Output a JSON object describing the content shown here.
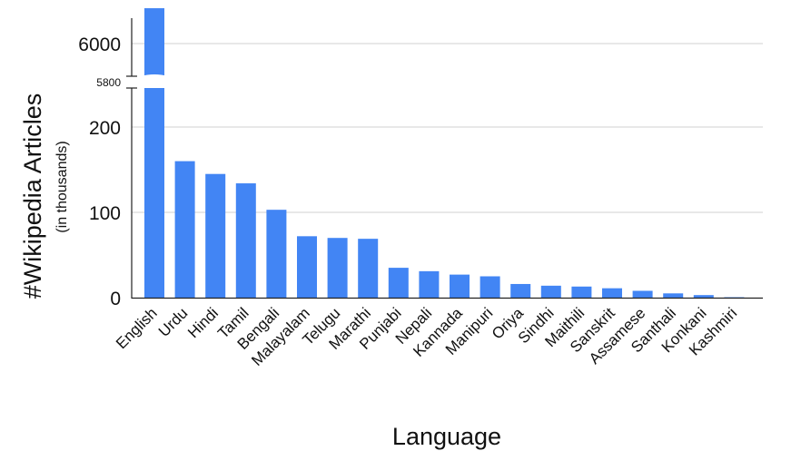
{
  "chart_data": {
    "type": "bar",
    "title": "",
    "xlabel": "Language",
    "ylabel": "#Wikipedia Articles",
    "ylabel_sub": "(in thousands)",
    "y_axis_break": {
      "lower_range": [
        0,
        250
      ],
      "upper_range": [
        5800,
        6050
      ],
      "break_label": "5800"
    },
    "yticks_lower": [
      0,
      100,
      200
    ],
    "yticks_upper": [
      6000
    ],
    "grid": true,
    "categories": [
      "English",
      "Urdu",
      "Hindi",
      "Tamil",
      "Bengali",
      "Malayalam",
      "Telugu",
      "Marathi",
      "Punjabi",
      "Nepali",
      "Kannada",
      "Manipuri",
      "Oriya",
      "Sindhi",
      "Maithili",
      "Sanskrit",
      "Assamese",
      "Santhali",
      "Konkani",
      "Kashmiri"
    ],
    "values": [
      6190,
      160,
      145,
      134,
      103,
      72,
      70,
      69,
      35,
      31,
      27,
      25,
      16,
      14,
      13,
      11,
      8,
      5,
      3,
      0.5
    ],
    "bar_color": "#4285f4"
  }
}
